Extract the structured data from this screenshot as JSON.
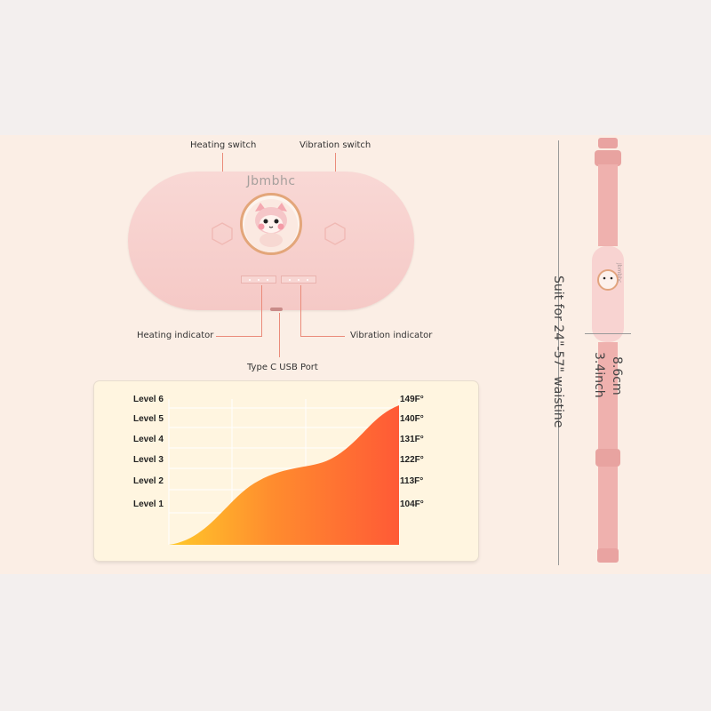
{
  "device": {
    "brand": "Jbmbhc"
  },
  "callouts": {
    "heating_switch": "Heating switch",
    "vibration_switch": "Vibration switch",
    "heating_indicator": "Heating indicator",
    "vibration_indicator": "Vibration indicator",
    "usb_port": "Type C USB Port"
  },
  "chart_data": {
    "type": "area",
    "levels": [
      "Level 6",
      "Level 5",
      "Level 4",
      "Level 3",
      "Level 2",
      "Level 1"
    ],
    "temperatures": [
      "149F°",
      "140F°",
      "131F°",
      "122F°",
      "113F°",
      "104F°"
    ],
    "gradient_colors": [
      "#ffc92a",
      "#ff8c2e",
      "#ff5a36"
    ]
  },
  "strap": {
    "waist_text": "Suit for 24\"-57\" waistine",
    "height_cm": "8.6cm",
    "height_inch": "3.4inch",
    "brand_small": "Jbmbhc"
  },
  "colors": {
    "panel": "#fbeee5",
    "device_pink": "#f7cfcc",
    "callout_line": "#ea8b7a"
  }
}
